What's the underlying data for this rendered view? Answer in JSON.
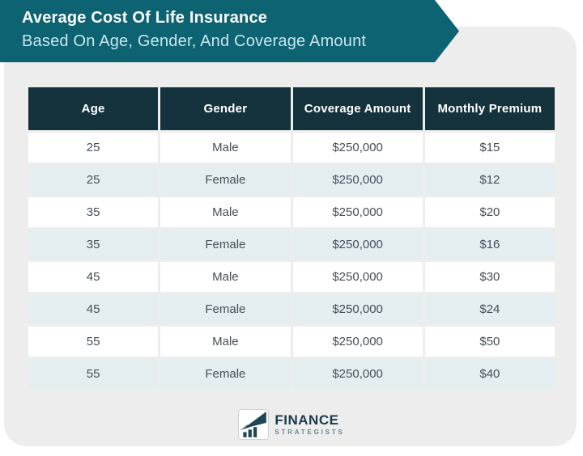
{
  "banner": {
    "title": "Average Cost Of Life Insurance",
    "subtitle": "Based On Age, Gender, And Coverage Amount",
    "background_color": "#0d6372",
    "title_color": "#ffffff",
    "subtitle_color": "#c9e6ee"
  },
  "table": {
    "columns": [
      "Age",
      "Gender",
      "Coverage Amount",
      "Monthly Premium"
    ],
    "rows": [
      [
        "25",
        "Male",
        "$250,000",
        "$15"
      ],
      [
        "25",
        "Female",
        "$250,000",
        "$12"
      ],
      [
        "35",
        "Male",
        "$250,000",
        "$20"
      ],
      [
        "35",
        "Female",
        "$250,000",
        "$16"
      ],
      [
        "45",
        "Male",
        "$250,000",
        "$30"
      ],
      [
        "45",
        "Female",
        "$250,000",
        "$24"
      ],
      [
        "55",
        "Male",
        "$250,000",
        "$50"
      ],
      [
        "55",
        "Female",
        "$250,000",
        "$40"
      ]
    ],
    "header_bg": "#14333d",
    "row_alt_bg": "#e4eef1",
    "panel_bg": "#ededee"
  },
  "footer": {
    "brand_line1": "FINANCE",
    "brand_line2": "STRATEGISTS"
  },
  "chart_data": {
    "type": "table",
    "title": "Average Cost Of Life Insurance Based On Age, Gender, And Coverage Amount",
    "columns": [
      "Age",
      "Gender",
      "Coverage Amount",
      "Monthly Premium"
    ],
    "rows": [
      {
        "age": 25,
        "gender": "Male",
        "coverage_amount": "$250,000",
        "monthly_premium": "$15"
      },
      {
        "age": 25,
        "gender": "Female",
        "coverage_amount": "$250,000",
        "monthly_premium": "$12"
      },
      {
        "age": 35,
        "gender": "Male",
        "coverage_amount": "$250,000",
        "monthly_premium": "$20"
      },
      {
        "age": 35,
        "gender": "Female",
        "coverage_amount": "$250,000",
        "monthly_premium": "$16"
      },
      {
        "age": 45,
        "gender": "Male",
        "coverage_amount": "$250,000",
        "monthly_premium": "$30"
      },
      {
        "age": 45,
        "gender": "Female",
        "coverage_amount": "$250,000",
        "monthly_premium": "$24"
      },
      {
        "age": 55,
        "gender": "Male",
        "coverage_amount": "$250,000",
        "monthly_premium": "$50"
      },
      {
        "age": 55,
        "gender": "Female",
        "coverage_amount": "$250,000",
        "monthly_premium": "$40"
      }
    ]
  }
}
